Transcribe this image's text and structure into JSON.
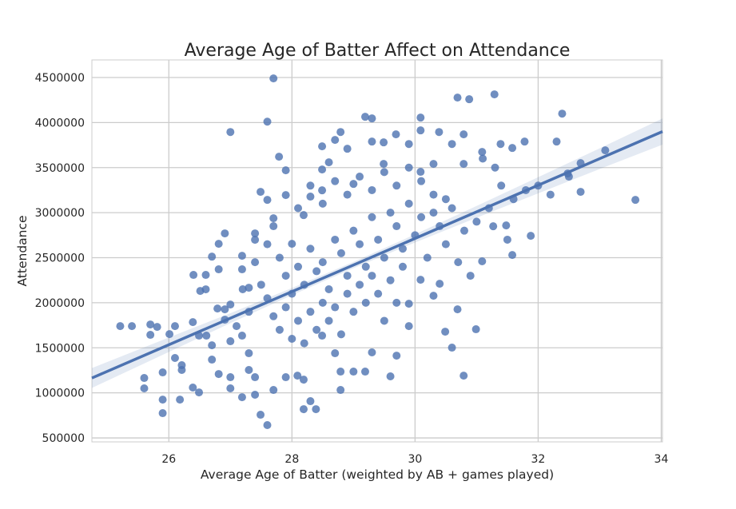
{
  "chart_data": {
    "type": "scatter",
    "title": "Average Age of Batter Affect on Attendance",
    "xlabel": "Average Age of Batter (weighted by AB + games played)",
    "ylabel": "Attendance",
    "xlim": [
      24.75,
      34.02
    ],
    "ylim": [
      456000,
      4695000
    ],
    "x_ticks": [
      26,
      28,
      30,
      32,
      34
    ],
    "y_ticks": [
      500000,
      1000000,
      1500000,
      2000000,
      2500000,
      3000000,
      3500000,
      4000000,
      4500000
    ],
    "x_tick_labels": [
      "26",
      "28",
      "30",
      "32",
      "34"
    ],
    "y_tick_labels": [
      "500000",
      "1000000",
      "1500000",
      "2000000",
      "2500000",
      "3000000",
      "3500000",
      "4000000",
      "4500000"
    ],
    "grid": true,
    "colors": {
      "points": "#4c72b0",
      "line": "#4c72b0",
      "band": "#4c72b0",
      "grid": "#cccccc"
    },
    "regression": {
      "x": [
        24.75,
        34.02
      ],
      "y": [
        1165000,
        3900000
      ]
    },
    "ci_band": {
      "x": [
        24.75,
        26,
        27,
        28,
        29,
        30,
        31,
        32,
        33,
        34.02
      ],
      "lower": [
        1055000,
        1454000,
        1774000,
        2084000,
        2384000,
        2669000,
        2944000,
        3214000,
        3484000,
        3755000
      ],
      "upper": [
        1275000,
        1614000,
        1884000,
        2164000,
        2454000,
        2759000,
        3074000,
        3394000,
        3714000,
        4045000
      ]
    },
    "points": [
      [
        27.7,
        4490000
      ],
      [
        27.6,
        4010000
      ],
      [
        27.0,
        3895000
      ],
      [
        25.21,
        1741000
      ],
      [
        25.4,
        1741000
      ],
      [
        25.6,
        1050000
      ],
      [
        25.6,
        1165000
      ],
      [
        25.7,
        1759000
      ],
      [
        25.7,
        1644000
      ],
      [
        25.81,
        1732000
      ],
      [
        25.9,
        775000
      ],
      [
        25.9,
        925000
      ],
      [
        25.9,
        1227000
      ],
      [
        26.01,
        1652000
      ],
      [
        26.1,
        1741000
      ],
      [
        26.1,
        1387000
      ],
      [
        26.18,
        925000
      ],
      [
        26.21,
        1307000
      ],
      [
        26.21,
        1254000
      ],
      [
        26.39,
        1785000
      ],
      [
        26.4,
        2309000
      ],
      [
        26.39,
        1059000
      ],
      [
        26.49,
        1005000
      ],
      [
        26.49,
        1635000
      ],
      [
        26.51,
        2131000
      ],
      [
        26.6,
        2309000
      ],
      [
        26.6,
        2149000
      ],
      [
        26.61,
        1635000
      ],
      [
        26.7,
        1528000
      ],
      [
        26.7,
        1369000
      ],
      [
        26.7,
        2512000
      ],
      [
        26.81,
        2654000
      ],
      [
        26.81,
        2371000
      ],
      [
        26.81,
        1209000
      ],
      [
        26.79,
        1936000
      ],
      [
        26.91,
        2770000
      ],
      [
        26.91,
        1927000
      ],
      [
        26.91,
        1812000
      ],
      [
        27.0,
        1050000
      ],
      [
        27.0,
        1174000
      ],
      [
        27.0,
        1573000
      ],
      [
        27.0,
        1980000
      ],
      [
        27.19,
        2521000
      ],
      [
        27.19,
        2371000
      ],
      [
        27.19,
        952000
      ],
      [
        27.19,
        1635000
      ],
      [
        27.1,
        1741000
      ],
      [
        27.3,
        2167000
      ],
      [
        27.3,
        1440000
      ],
      [
        27.3,
        1254000
      ],
      [
        27.4,
        979000
      ],
      [
        27.4,
        1174000
      ],
      [
        27.4,
        2770000
      ],
      [
        27.4,
        2699000
      ],
      [
        27.49,
        3231000
      ],
      [
        27.49,
        757000
      ],
      [
        27.6,
        642000
      ],
      [
        27.6,
        3142000
      ],
      [
        27.7,
        2938000
      ],
      [
        27.7,
        1032000
      ],
      [
        27.79,
        3621000
      ],
      [
        27.9,
        3470000
      ],
      [
        27.9,
        3195000
      ],
      [
        27.9,
        1174000
      ],
      [
        28.0,
        2654000
      ],
      [
        28.09,
        1191000
      ],
      [
        28.19,
        819000
      ],
      [
        28.19,
        1147000
      ],
      [
        28.3,
        908000
      ],
      [
        28.39,
        819000
      ],
      [
        28.19,
        2973000
      ],
      [
        28.3,
        3178000
      ],
      [
        28.49,
        3736000
      ],
      [
        28.49,
        3479000
      ],
      [
        28.49,
        3248000
      ],
      [
        28.6,
        3559000
      ],
      [
        28.7,
        3807000
      ],
      [
        28.79,
        3895000
      ],
      [
        28.79,
        1032000
      ],
      [
        28.9,
        3709000
      ],
      [
        29.0,
        3319000
      ],
      [
        29.19,
        4064000
      ],
      [
        29.3,
        4046000
      ],
      [
        29.3,
        3789000
      ],
      [
        29.49,
        3780000
      ],
      [
        29.49,
        3541000
      ],
      [
        29.69,
        3869000
      ],
      [
        29.9,
        3762000
      ],
      [
        30.09,
        4055000
      ],
      [
        30.09,
        3913000
      ],
      [
        30.09,
        3453000
      ],
      [
        30.3,
        3541000
      ],
      [
        30.39,
        3895000
      ],
      [
        30.6,
        3762000
      ],
      [
        30.69,
        4277000
      ],
      [
        30.79,
        3869000
      ],
      [
        30.79,
        3541000
      ],
      [
        30.88,
        4259000
      ],
      [
        31.09,
        3674000
      ],
      [
        31.29,
        4313000
      ],
      [
        31.39,
        3762000
      ],
      [
        31.58,
        3718000
      ],
      [
        31.78,
        3789000
      ],
      [
        32.3,
        3789000
      ],
      [
        32.39,
        4099000
      ],
      [
        32.48,
        3435000
      ],
      [
        32.69,
        3550000
      ],
      [
        32.69,
        3231000
      ],
      [
        33.09,
        3692000
      ],
      [
        33.58,
        3142000
      ],
      [
        31.88,
        2743000
      ],
      [
        31.58,
        2530000
      ],
      [
        31.48,
        2858000
      ],
      [
        31.27,
        2849000
      ],
      [
        31.09,
        2460000
      ],
      [
        30.99,
        1706000
      ],
      [
        30.79,
        1191000
      ],
      [
        30.49,
        1679000
      ],
      [
        30.6,
        1502000
      ],
      [
        30.69,
        1927000
      ],
      [
        30.4,
        2211000
      ],
      [
        30.3,
        2078000
      ],
      [
        30.09,
        2255000
      ],
      [
        29.9,
        1989000
      ],
      [
        29.9,
        1741000
      ],
      [
        29.7,
        1413000
      ],
      [
        29.6,
        1183000
      ],
      [
        29.3,
        1449000
      ],
      [
        29.19,
        1236000
      ],
      [
        29.0,
        1236000
      ],
      [
        28.79,
        1236000
      ],
      [
        28.7,
        1440000
      ],
      [
        28.49,
        1635000
      ],
      [
        27.8,
        2500000
      ],
      [
        27.9,
        2300000
      ],
      [
        28.0,
        2100000
      ],
      [
        28.1,
        2400000
      ],
      [
        28.2,
        2200000
      ],
      [
        28.3,
        2600000
      ],
      [
        28.4,
        2350000
      ],
      [
        28.5,
        2450000
      ],
      [
        28.6,
        2150000
      ],
      [
        28.7,
        2700000
      ],
      [
        28.8,
        2550000
      ],
      [
        28.9,
        2300000
      ],
      [
        29.0,
        2800000
      ],
      [
        29.1,
        2650000
      ],
      [
        29.2,
        2400000
      ],
      [
        29.3,
        2950000
      ],
      [
        29.4,
        2700000
      ],
      [
        29.5,
        2500000
      ],
      [
        29.6,
        3000000
      ],
      [
        29.7,
        2850000
      ],
      [
        29.8,
        2600000
      ],
      [
        29.9,
        3100000
      ],
      [
        30.0,
        2750000
      ],
      [
        30.1,
        2950000
      ],
      [
        30.2,
        2500000
      ],
      [
        30.3,
        3200000
      ],
      [
        30.4,
        2850000
      ],
      [
        30.5,
        2650000
      ],
      [
        30.6,
        3050000
      ],
      [
        30.8,
        2800000
      ],
      [
        27.6,
        2050000
      ],
      [
        27.7,
        1850000
      ],
      [
        27.8,
        1700000
      ],
      [
        27.9,
        1950000
      ],
      [
        28.0,
        1600000
      ],
      [
        28.1,
        1800000
      ],
      [
        28.2,
        1550000
      ],
      [
        28.3,
        1900000
      ],
      [
        28.4,
        1700000
      ],
      [
        28.5,
        2000000
      ],
      [
        28.6,
        1800000
      ],
      [
        28.7,
        1950000
      ],
      [
        28.8,
        1650000
      ],
      [
        28.9,
        2100000
      ],
      [
        29.0,
        1900000
      ],
      [
        29.1,
        2200000
      ],
      [
        29.2,
        2000000
      ],
      [
        29.3,
        2300000
      ],
      [
        29.4,
        2100000
      ],
      [
        29.5,
        1800000
      ],
      [
        29.6,
        2250000
      ],
      [
        29.7,
        2000000
      ],
      [
        29.8,
        2400000
      ],
      [
        27.5,
        2200000
      ],
      [
        27.4,
        2450000
      ],
      [
        27.3,
        1900000
      ],
      [
        27.2,
        2150000
      ],
      [
        27.6,
        2650000
      ],
      [
        27.7,
        2850000
      ],
      [
        28.1,
        3050000
      ],
      [
        28.3,
        3300000
      ],
      [
        28.5,
        3100000
      ],
      [
        28.7,
        3350000
      ],
      [
        28.9,
        3200000
      ],
      [
        29.1,
        3400000
      ],
      [
        29.3,
        3250000
      ],
      [
        29.5,
        3450000
      ],
      [
        29.7,
        3300000
      ],
      [
        29.9,
        3500000
      ],
      [
        30.1,
        3350000
      ],
      [
        30.3,
        3000000
      ],
      [
        30.5,
        3150000
      ],
      [
        30.7,
        2450000
      ],
      [
        30.9,
        2300000
      ],
      [
        31.0,
        2900000
      ],
      [
        31.2,
        3050000
      ],
      [
        31.4,
        3300000
      ],
      [
        31.6,
        3150000
      ],
      [
        31.8,
        3250000
      ],
      [
        32.0,
        3300000
      ],
      [
        32.2,
        3200000
      ],
      [
        32.5,
        3400000
      ],
      [
        31.1,
        3600000
      ],
      [
        31.3,
        3500000
      ],
      [
        31.5,
        2700000
      ]
    ]
  }
}
